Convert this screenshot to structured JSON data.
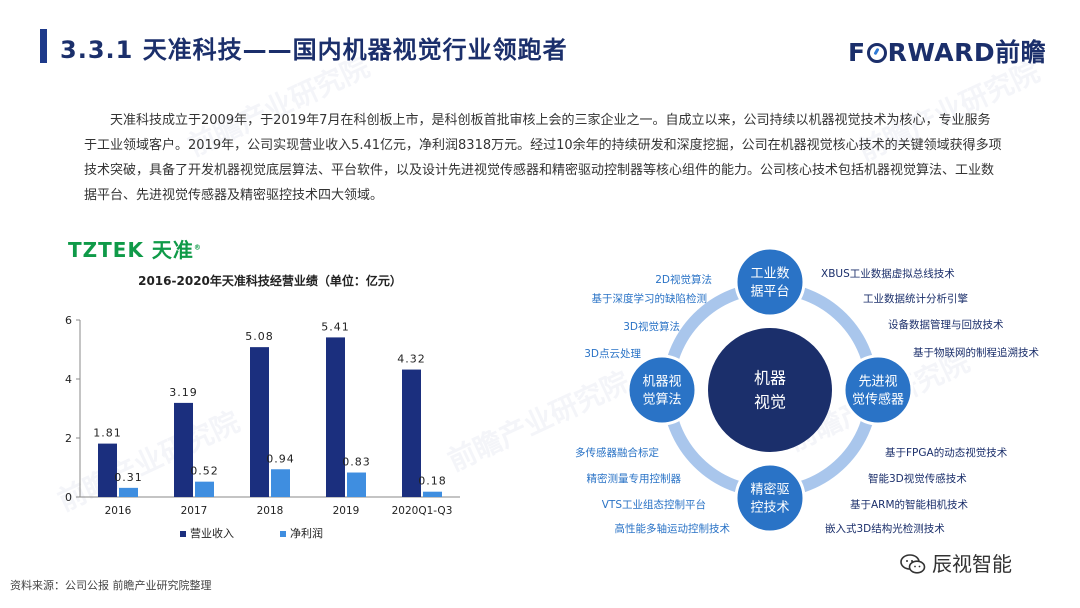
{
  "header": {
    "title": "3.3.1 天准科技——国内机器视觉行业领跑者",
    "logo_text_1": "F",
    "logo_text_2": "RWARD前瞻"
  },
  "intro": "天准科技成立于2009年，于2019年7月在科创板上市，是科创板首批审核上会的三家企业之一。自成立以来，公司持续以机器视觉技术为核心，专业服务于工业领域客户。2019年，公司实现营业收入5.41亿元，净利润8318万元。经过10余年的持续研发和深度挖掘，公司在机器视觉核心技术的关键领域获得多项技术突破，具备了开发机器视觉底层算法、平台软件，以及设计先进视觉传感器和精密驱动控制器等核心组件的能力。公司核心技术包括机器视觉算法、工业数据平台、先进视觉传感器及精密驱控技术四大领域。",
  "company_logo": {
    "en": "TZTEK",
    "cn": "天准",
    "mark": "®"
  },
  "colors": {
    "revenue": "#1b2f7e",
    "profit": "#3f8ee0",
    "center": "#1b2f6b",
    "node": "#2a73c6",
    "ring": "#a9c6ec",
    "label": "#2a73c6",
    "label_dark": "#1b2f6b",
    "brand_green": "#0f9a48"
  },
  "chart_data": {
    "type": "bar",
    "title": "2016-2020年天准科技经营业绩（单位：亿元）",
    "categories": [
      "2016",
      "2017",
      "2018",
      "2019",
      "2020Q1-Q3"
    ],
    "series": [
      {
        "name": "营业收入",
        "values": [
          1.81,
          3.19,
          5.08,
          5.41,
          4.32
        ]
      },
      {
        "name": "净利润",
        "values": [
          0.31,
          0.52,
          0.94,
          0.83,
          0.18
        ]
      }
    ],
    "ylim": [
      0,
      6
    ],
    "yticks": [
      0,
      2,
      4,
      6
    ],
    "legend": "bottom",
    "grid": false,
    "data_labels": true
  },
  "diagram": {
    "center": "机器\n视觉",
    "nodes": {
      "top": "工业数\n据平台",
      "right": "先进视\n觉传感器",
      "bottom": "精密驱\n控技术",
      "left": "机器视\n觉算法"
    },
    "labels_left_top": [
      "2D视觉算法",
      "基于深度学习的缺陷检测",
      "3D视觉算法",
      "3D点云处理"
    ],
    "labels_right_top": [
      "XBUS工业数据虚拟总线技术",
      "工业数据统计分析引擎",
      "设备数据管理与回放技术",
      "基于物联网的制程追溯技术"
    ],
    "labels_left_bottom": [
      "多传感器融合标定",
      "精密测量专用控制器",
      "VTS工业组态控制平台",
      "高性能多轴运动控制技术"
    ],
    "labels_right_bottom": [
      "基于FPGA的动态视觉技术",
      "智能3D视觉传感技术",
      "基于ARM的智能相机技术",
      "嵌入式3D结构光检测技术"
    ]
  },
  "watermark": "前瞻产业研究院",
  "footer": {
    "source": "资料来源：公司公报 前瞻产业研究院整理",
    "wechat": "辰视智能"
  }
}
